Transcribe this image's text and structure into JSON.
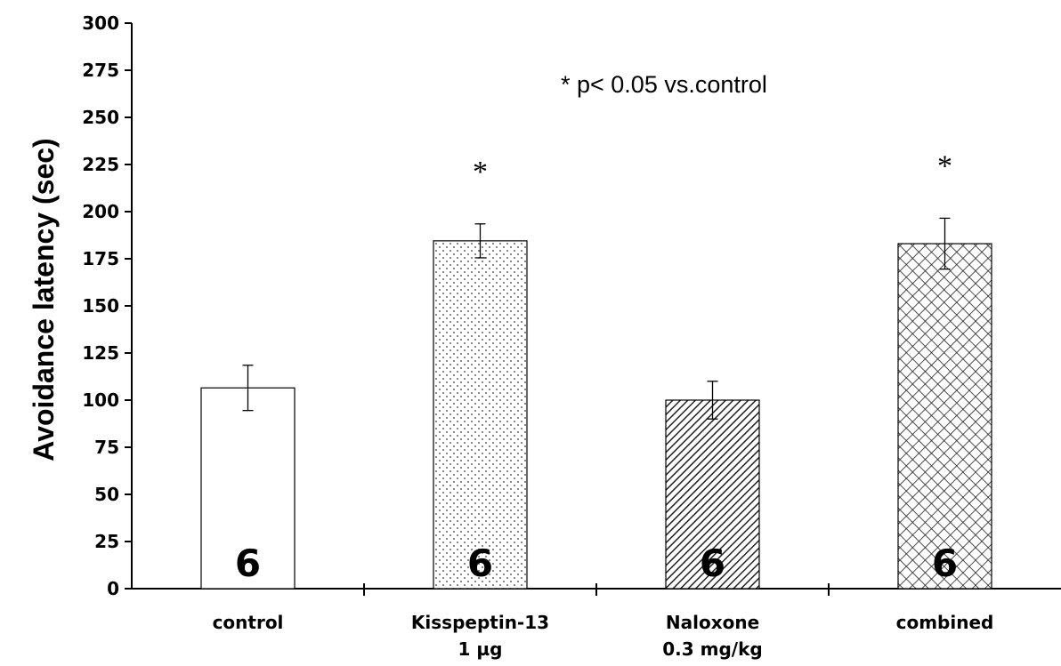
{
  "chart_data": {
    "type": "bar",
    "ylabel": "Avoidance latency  (sec)",
    "ylim": [
      0,
      300
    ],
    "yticks": [
      0,
      25,
      50,
      75,
      100,
      125,
      150,
      175,
      200,
      225,
      250,
      275,
      300
    ],
    "categories": [
      [
        "control"
      ],
      [
        "Kisspeptin-13",
        "1 µg"
      ],
      [
        "Naloxone",
        "0.3 mg/kg"
      ],
      [
        "combined"
      ]
    ],
    "values": [
      106.5,
      184.5,
      100,
      183
    ],
    "errors": [
      12,
      9,
      10,
      13.5
    ],
    "n": [
      "6",
      "6",
      "6",
      "6"
    ],
    "significance": [
      "",
      "*",
      "",
      "*"
    ],
    "annotation": "* p< 0.05 vs.control",
    "patterns": [
      "none",
      "dots",
      "diagonal-lines",
      "crosshatch"
    ],
    "grid": false,
    "legend": "none"
  }
}
